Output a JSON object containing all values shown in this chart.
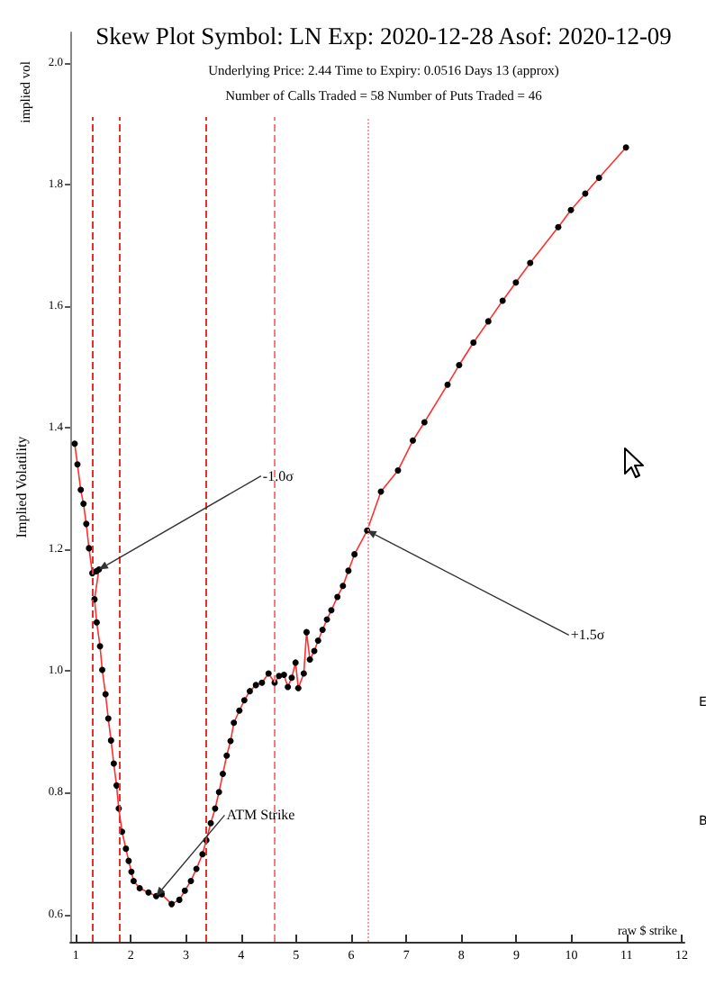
{
  "chart_data": {
    "type": "line",
    "title": "Skew Plot Symbol: LN Exp: 2020-12-28 Asof: 2020-12-09",
    "subtitle": "Underlying Price: 2.44 Time to Expiry: 0.0516 Days 13 (approx)\nNumber of Calls Traded = 58 Number of Puts Traded = 46",
    "xlabel": "raw $ strike",
    "ylabel": "Implied Volatility",
    "x": [
      0.98,
      1.03,
      1.09,
      1.14,
      1.19,
      1.24,
      1.3,
      1.37,
      1.42,
      1.34,
      1.38,
      1.44,
      1.48,
      1.54,
      1.59,
      1.64,
      1.69,
      1.74,
      1.78,
      1.84,
      1.91,
      1.96,
      2.01,
      2.05,
      2.16,
      2.32,
      2.46,
      2.56,
      2.74,
      2.88,
      2.98,
      3.09,
      3.19,
      3.3,
      3.37,
      3.45,
      3.53,
      3.6,
      3.67,
      3.74,
      3.81,
      3.87,
      3.97,
      4.06,
      4.16,
      4.27,
      4.38,
      4.5,
      4.61,
      4.69,
      4.78,
      4.85,
      4.92,
      4.99,
      5.04,
      5.14,
      5.19,
      5.25,
      5.33,
      5.4,
      5.48,
      5.56,
      5.64,
      5.75,
      5.85,
      5.95,
      6.06,
      6.29,
      6.54,
      6.85,
      7.12,
      7.33,
      7.75,
      7.96,
      8.22,
      8.49,
      8.75,
      8.99,
      9.25,
      9.76,
      9.99,
      10.25,
      10.5,
      10.99
    ],
    "series": [
      {
        "color": "#ff3030",
        "values": [
          1.374,
          1.34,
          1.298,
          1.275,
          1.242,
          1.202,
          1.161,
          1.164,
          1.167,
          1.118,
          1.08,
          1.041,
          1.002,
          0.962,
          0.922,
          0.886,
          0.848,
          0.812,
          0.774,
          0.736,
          0.708,
          0.688,
          0.67,
          0.655,
          0.643,
          0.636,
          0.63,
          0.633,
          0.617,
          0.624,
          0.639,
          0.655,
          0.675,
          0.699,
          0.722,
          0.75,
          0.774,
          0.801,
          0.831,
          0.861,
          0.885,
          0.915,
          0.935,
          0.952,
          0.967,
          0.977,
          0.981,
          0.996,
          0.981,
          0.992,
          0.994,
          0.974,
          0.989,
          1.014,
          0.972,
          0.996,
          1.064,
          1.019,
          1.033,
          1.05,
          1.068,
          1.085,
          1.1,
          1.122,
          1.14,
          1.165,
          1.192,
          1.231,
          1.295,
          1.33,
          1.379,
          1.409,
          1.471,
          1.503,
          1.54,
          1.575,
          1.609,
          1.639,
          1.671,
          1.73,
          1.758,
          1.785,
          1.811,
          1.861
        ]
      }
    ],
    "xlim": [
      0.9,
      12.05
    ],
    "ylim": [
      0.555,
      2.05
    ],
    "xticks": [
      1,
      2,
      3,
      4,
      5,
      6,
      7,
      8,
      9,
      10,
      11,
      12
    ],
    "yticks": [
      0.6,
      0.8,
      {
        "value": 1,
        "label": "1.0"
      },
      1.2,
      1.4,
      1.6,
      1.8,
      {
        "value": 2,
        "label": "2.0"
      }
    ],
    "ref_lines": [
      {
        "axis": "x",
        "value": 1.3,
        "color": "#e03030",
        "line_style": "dashed"
      },
      {
        "axis": "x",
        "value": 1.78,
        "color": "#e03030",
        "line_style": "dashed"
      },
      {
        "axis": "x",
        "value": 3.36,
        "color": "#e03030",
        "line_style": "dashed"
      },
      {
        "axis": "x",
        "value": 4.6,
        "color": "#f08080",
        "line_style": "dashed"
      },
      {
        "axis": "x",
        "value": 6.29,
        "color": "#f4a0a0",
        "line_style": "dotted"
      }
    ],
    "annotations": [
      {
        "text": "-1.0σ",
        "x": 1.42,
        "y": 1.167
      },
      {
        "text": "+1.5σ",
        "x": 6.29,
        "y": 1.231
      },
      {
        "text": "ATM Strike",
        "x": 2.46,
        "y": 0.63
      },
      "implied vol",
      "E",
      "B"
    ],
    "marker": "circle",
    "line_style": "solid"
  }
}
